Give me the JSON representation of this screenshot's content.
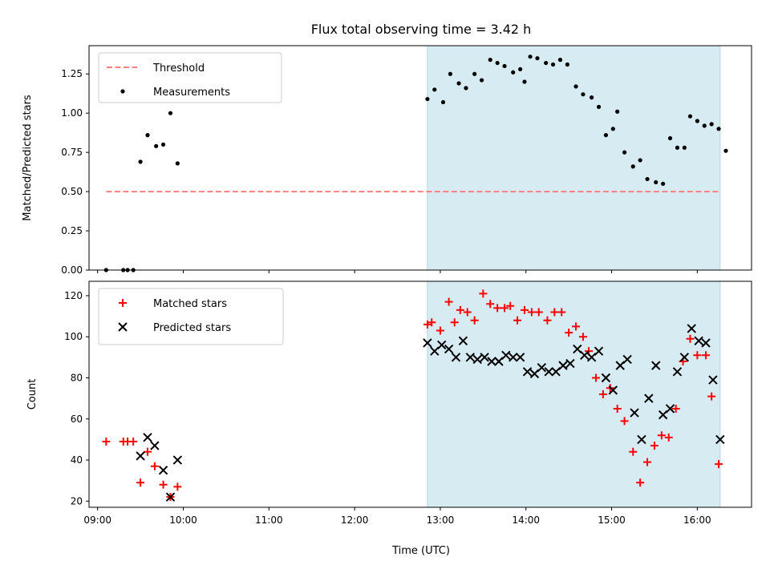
{
  "chart_data": [
    {
      "type": "scatter",
      "title": "Flux total observing time = 3.42 h",
      "xlabel": "",
      "ylabel": "Matched/Predicted stars",
      "ylim": [
        0,
        1.43
      ],
      "xlim": [
        "08:54",
        "16:38"
      ],
      "grid": false,
      "legend": "top-left",
      "highlight_span": {
        "start": "12:51",
        "end": "16:16",
        "color": "#add8e6"
      },
      "yticks": [
        "0.00",
        "0.25",
        "0.50",
        "0.75",
        "1.00",
        "1.25"
      ],
      "xtick_labels": [],
      "series": [
        {
          "name": "Threshold",
          "style": "dashed-line",
          "color": "#ff7f7f",
          "x": [
            "09:06",
            "16:16"
          ],
          "y": [
            0.5,
            0.5
          ]
        },
        {
          "name": "Measurements",
          "style": "dot",
          "color": "#000000",
          "points": [
            [
              "09:06",
              0.0
            ],
            [
              "09:18",
              0.0
            ],
            [
              "09:21",
              0.0
            ],
            [
              "09:25",
              0.0
            ],
            [
              "09:30",
              0.69
            ],
            [
              "09:35",
              0.86
            ],
            [
              "09:41",
              0.79
            ],
            [
              "09:46",
              0.8
            ],
            [
              "09:51",
              1.0
            ],
            [
              "09:56",
              0.68
            ],
            [
              "12:51",
              1.09
            ],
            [
              "12:56",
              1.15
            ],
            [
              "13:02",
              1.07
            ],
            [
              "13:07",
              1.25
            ],
            [
              "13:13",
              1.19
            ],
            [
              "13:18",
              1.16
            ],
            [
              "13:24",
              1.25
            ],
            [
              "13:29",
              1.21
            ],
            [
              "13:35",
              1.34
            ],
            [
              "13:40",
              1.32
            ],
            [
              "13:45",
              1.3
            ],
            [
              "13:51",
              1.26
            ],
            [
              "13:56",
              1.28
            ],
            [
              "13:59",
              1.2
            ],
            [
              "14:03",
              1.36
            ],
            [
              "14:08",
              1.35
            ],
            [
              "14:14",
              1.32
            ],
            [
              "14:19",
              1.31
            ],
            [
              "14:24",
              1.34
            ],
            [
              "14:29",
              1.31
            ],
            [
              "14:35",
              1.17
            ],
            [
              "14:40",
              1.12
            ],
            [
              "14:46",
              1.1
            ],
            [
              "14:51",
              1.04
            ],
            [
              "14:56",
              0.86
            ],
            [
              "15:01",
              0.9
            ],
            [
              "15:04",
              1.01
            ],
            [
              "15:09",
              0.75
            ],
            [
              "15:15",
              0.66
            ],
            [
              "15:20",
              0.7
            ],
            [
              "15:25",
              0.58
            ],
            [
              "15:31",
              0.56
            ],
            [
              "15:36",
              0.55
            ],
            [
              "15:41",
              0.84
            ],
            [
              "15:46",
              0.78
            ],
            [
              "15:51",
              0.78
            ],
            [
              "15:55",
              0.98
            ],
            [
              "16:00",
              0.95
            ],
            [
              "16:05",
              0.92
            ],
            [
              "16:10",
              0.93
            ],
            [
              "16:15",
              0.9
            ],
            [
              "16:20",
              0.76
            ]
          ]
        }
      ]
    },
    {
      "type": "scatter",
      "title": "",
      "xlabel": "Time (UTC)",
      "ylabel": "Count",
      "ylim": [
        17,
        127
      ],
      "xlim": [
        "08:54",
        "16:38"
      ],
      "grid": false,
      "legend": "top-left",
      "highlight_span": {
        "start": "12:51",
        "end": "16:16",
        "color": "#add8e6"
      },
      "yticks": [
        "20",
        "40",
        "60",
        "80",
        "100",
        "120"
      ],
      "xtick_labels": [
        "09:00",
        "10:00",
        "11:00",
        "12:00",
        "13:00",
        "14:00",
        "15:00",
        "16:00"
      ],
      "series": [
        {
          "name": "Matched stars",
          "marker": "+",
          "color": "#ff0000",
          "points": [
            [
              "09:06",
              49
            ],
            [
              "09:18",
              49
            ],
            [
              "09:21",
              49
            ],
            [
              "09:25",
              49
            ],
            [
              "09:30",
              29
            ],
            [
              "09:35",
              44
            ],
            [
              "09:40",
              37
            ],
            [
              "09:46",
              28
            ],
            [
              "09:51",
              22
            ],
            [
              "09:56",
              27
            ],
            [
              "12:51",
              106
            ],
            [
              "12:54",
              107
            ],
            [
              "13:00",
              103
            ],
            [
              "13:06",
              117
            ],
            [
              "13:10",
              107
            ],
            [
              "13:14",
              113
            ],
            [
              "13:19",
              112
            ],
            [
              "13:24",
              108
            ],
            [
              "13:30",
              121
            ],
            [
              "13:35",
              116
            ],
            [
              "13:40",
              114
            ],
            [
              "13:45",
              114
            ],
            [
              "13:49",
              115
            ],
            [
              "13:54",
              108
            ],
            [
              "13:59",
              113
            ],
            [
              "14:04",
              112
            ],
            [
              "14:09",
              112
            ],
            [
              "14:15",
              108
            ],
            [
              "14:20",
              112
            ],
            [
              "14:25",
              112
            ],
            [
              "14:30",
              102
            ],
            [
              "14:35",
              105
            ],
            [
              "14:40",
              100
            ],
            [
              "14:44",
              93
            ],
            [
              "14:49",
              80
            ],
            [
              "14:54",
              72
            ],
            [
              "14:59",
              75
            ],
            [
              "15:04",
              65
            ],
            [
              "15:09",
              59
            ],
            [
              "15:15",
              44
            ],
            [
              "15:20",
              29
            ],
            [
              "15:25",
              39
            ],
            [
              "15:30",
              47
            ],
            [
              "15:35",
              52
            ],
            [
              "15:40",
              51
            ],
            [
              "15:45",
              65
            ],
            [
              "15:50",
              88
            ],
            [
              "15:55",
              99
            ],
            [
              "16:00",
              91
            ],
            [
              "16:06",
              91
            ],
            [
              "16:10",
              71
            ],
            [
              "16:15",
              38
            ]
          ]
        },
        {
          "name": "Predicted stars",
          "marker": "x",
          "color": "#000000",
          "points": [
            [
              "09:30",
              42
            ],
            [
              "09:35",
              51
            ],
            [
              "09:40",
              47
            ],
            [
              "09:46",
              35
            ],
            [
              "09:51",
              22
            ],
            [
              "09:56",
              40
            ],
            [
              "12:51",
              97
            ],
            [
              "12:56",
              93
            ],
            [
              "13:01",
              96
            ],
            [
              "13:06",
              94
            ],
            [
              "13:11",
              90
            ],
            [
              "13:16",
              98
            ],
            [
              "13:21",
              90
            ],
            [
              "13:26",
              89
            ],
            [
              "13:31",
              90
            ],
            [
              "13:36",
              88
            ],
            [
              "13:41",
              88
            ],
            [
              "13:46",
              91
            ],
            [
              "13:51",
              90
            ],
            [
              "13:56",
              90
            ],
            [
              "14:01",
              83
            ],
            [
              "14:06",
              82
            ],
            [
              "14:11",
              85
            ],
            [
              "14:16",
              83
            ],
            [
              "14:21",
              83
            ],
            [
              "14:26",
              86
            ],
            [
              "14:31",
              87
            ],
            [
              "14:36",
              94
            ],
            [
              "14:41",
              91
            ],
            [
              "14:46",
              90
            ],
            [
              "14:51",
              93
            ],
            [
              "14:56",
              80
            ],
            [
              "15:01",
              74
            ],
            [
              "15:06",
              86
            ],
            [
              "15:11",
              89
            ],
            [
              "15:16",
              63
            ],
            [
              "15:21",
              50
            ],
            [
              "15:26",
              70
            ],
            [
              "15:31",
              86
            ],
            [
              "15:36",
              62
            ],
            [
              "15:41",
              65
            ],
            [
              "15:46",
              83
            ],
            [
              "15:51",
              90
            ],
            [
              "15:56",
              104
            ],
            [
              "16:01",
              98
            ],
            [
              "16:06",
              97
            ],
            [
              "16:11",
              79
            ],
            [
              "16:16",
              50
            ]
          ]
        }
      ]
    }
  ]
}
